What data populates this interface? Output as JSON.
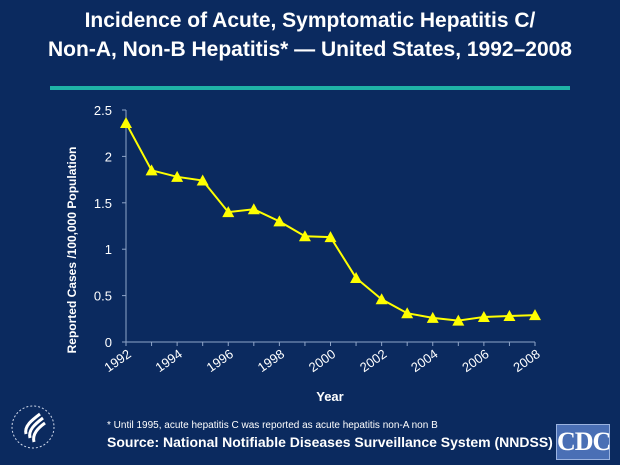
{
  "title_line1": "Incidence of Acute, Symptomatic Hepatitis C/",
  "title_line2": "Non-A, Non-B Hepatitis* — United States, 1992–2008",
  "footnote": "* Until 1995, acute hepatitis C was reported as acute hepatitis non-A non B",
  "source": "Source: National Notifiable Diseases Surveillance System (NNDSS)",
  "logo_text": "CDC",
  "colors": {
    "background": "#0b2a5f",
    "line": "#ffff00",
    "rule": "#1fb3a6"
  },
  "chart_data": {
    "type": "line",
    "title": "Incidence of Acute, Symptomatic Hepatitis C/ Non-A, Non-B Hepatitis* — United States, 1992–2008",
    "xlabel": "Year",
    "ylabel": "Reported Cases /100,000 Population",
    "x": [
      1992,
      1993,
      1994,
      1995,
      1996,
      1997,
      1998,
      1999,
      2000,
      2001,
      2002,
      2003,
      2004,
      2005,
      2006,
      2007,
      2008
    ],
    "values": [
      2.36,
      1.85,
      1.78,
      1.74,
      1.4,
      1.43,
      1.3,
      1.14,
      1.13,
      0.69,
      0.46,
      0.31,
      0.26,
      0.23,
      0.27,
      0.28,
      0.29
    ],
    "xticklabels": [
      "1992",
      "1994",
      "1996",
      "1998",
      "2000",
      "2002",
      "2004",
      "2006",
      "2008"
    ],
    "yticks": [
      0,
      0.5,
      1,
      1.5,
      2,
      2.5
    ],
    "yticklabels": [
      "0",
      "0.5",
      "1",
      "1.5",
      "2",
      "2.5"
    ],
    "ylim": [
      0,
      2.5
    ],
    "grid": false,
    "marker": "triangle"
  }
}
